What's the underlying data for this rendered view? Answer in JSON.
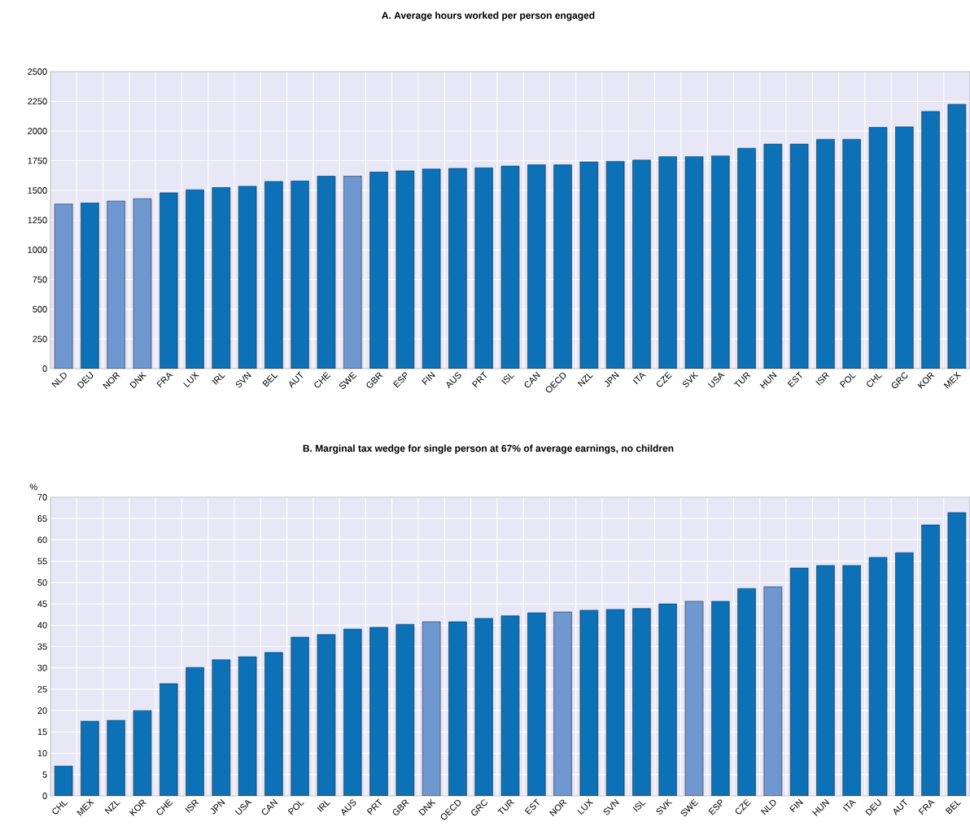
{
  "chart_data": [
    {
      "type": "bar",
      "title": "A. Average hours worked per person engaged",
      "categories": [
        "NLD",
        "DEU",
        "NOR",
        "DNK",
        "FRA",
        "LUX",
        "IRL",
        "SVN",
        "BEL",
        "AUT",
        "CHE",
        "SWE",
        "GBR",
        "ESP",
        "FIN",
        "AUS",
        "PRT",
        "ISL",
        "CAN",
        "OECD",
        "NZL",
        "JPN",
        "ITA",
        "CZE",
        "SVK",
        "USA",
        "TUR",
        "HUN",
        "EST",
        "ISR",
        "POL",
        "CHL",
        "GRC",
        "KOR",
        "MEX"
      ],
      "values": [
        1385,
        1395,
        1410,
        1430,
        1480,
        1505,
        1525,
        1535,
        1575,
        1580,
        1620,
        1620,
        1655,
        1665,
        1680,
        1685,
        1690,
        1705,
        1715,
        1715,
        1740,
        1745,
        1755,
        1785,
        1785,
        1790,
        1855,
        1890,
        1890,
        1930,
        1930,
        2030,
        2035,
        2165,
        2225
      ],
      "colors": [
        "#7098d0",
        "#0c71b7",
        "#7098d0",
        "#7098d0",
        "#0c71b7",
        "#0c71b7",
        "#0c71b7",
        "#0c71b7",
        "#0c71b7",
        "#0c71b7",
        "#0c71b7",
        "#7098d0",
        "#0c71b7",
        "#0c71b7",
        "#0c71b7",
        "#0c71b7",
        "#0c71b7",
        "#0c71b7",
        "#0c71b7",
        "#0c71b7",
        "#0c71b7",
        "#0c71b7",
        "#0c71b7",
        "#0c71b7",
        "#0c71b7",
        "#0c71b7",
        "#0c71b7",
        "#0c71b7",
        "#0c71b7",
        "#0c71b7",
        "#0c71b7",
        "#0c71b7",
        "#0c71b7",
        "#0c71b7",
        "#0c71b7"
      ],
      "ylim": [
        0,
        2500
      ],
      "yticks": [
        0,
        250,
        500,
        750,
        1000,
        1250,
        1500,
        1750,
        2000,
        2250,
        2500
      ],
      "grid": true
    },
    {
      "type": "bar",
      "title": "B. Marginal tax wedge for single person at 67% of average earnings, no children",
      "ylabel": "%",
      "categories": [
        "CHL",
        "MEX",
        "NZL",
        "KOR",
        "CHE",
        "ISR",
        "JPN",
        "USA",
        "CAN",
        "POL",
        "IRL",
        "AUS",
        "PRT",
        "GBR",
        "DNK",
        "OECD",
        "GRC",
        "TUR",
        "EST",
        "NOR",
        "LUX",
        "SVN",
        "ISL",
        "SVK",
        "SWE",
        "ESP",
        "CZE",
        "NLD",
        "FIN",
        "HUN",
        "ITA",
        "DEU",
        "AUT",
        "FRA",
        "BEL"
      ],
      "values": [
        7.0,
        17.5,
        17.7,
        20.0,
        26.3,
        30.1,
        31.9,
        32.6,
        33.6,
        37.2,
        37.8,
        39.1,
        39.5,
        40.2,
        40.8,
        40.8,
        41.6,
        42.2,
        42.9,
        43.1,
        43.5,
        43.7,
        43.9,
        45.0,
        45.6,
        45.6,
        48.6,
        49.0,
        53.4,
        54.0,
        54.0,
        55.9,
        57.0,
        63.5,
        66.4
      ],
      "colors": [
        "#0c71b7",
        "#0c71b7",
        "#0c71b7",
        "#0c71b7",
        "#0c71b7",
        "#0c71b7",
        "#0c71b7",
        "#0c71b7",
        "#0c71b7",
        "#0c71b7",
        "#0c71b7",
        "#0c71b7",
        "#0c71b7",
        "#0c71b7",
        "#7098d0",
        "#0c71b7",
        "#0c71b7",
        "#0c71b7",
        "#0c71b7",
        "#7098d0",
        "#0c71b7",
        "#0c71b7",
        "#0c71b7",
        "#0c71b7",
        "#7098d0",
        "#0c71b7",
        "#0c71b7",
        "#7098d0",
        "#0c71b7",
        "#0c71b7",
        "#0c71b7",
        "#0c71b7",
        "#0c71b7",
        "#0c71b7",
        "#0c71b7"
      ],
      "ylim": [
        0,
        70
      ],
      "yticks": [
        0,
        5,
        10,
        15,
        20,
        25,
        30,
        35,
        40,
        45,
        50,
        55,
        60,
        65,
        70
      ],
      "grid": true
    }
  ]
}
